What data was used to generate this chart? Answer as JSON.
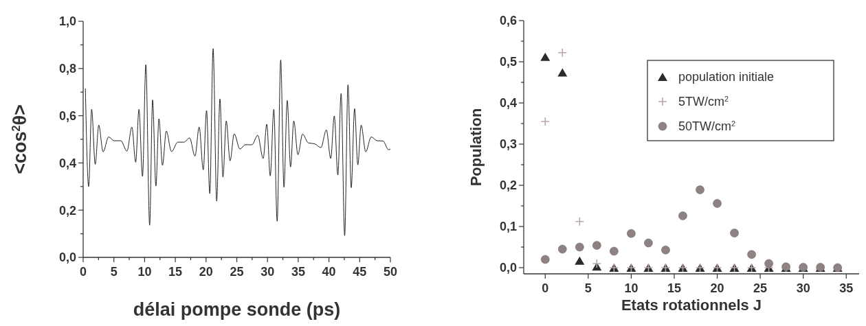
{
  "chart_data": [
    {
      "type": "line",
      "xlabel": "délai pompe sonde (ps)",
      "ylabel": "<cos$^{2}$θ>",
      "xlim": [
        0,
        50
      ],
      "ylim": [
        0,
        1
      ],
      "xticks": [
        0,
        {
          "value": 2.5,
          "label": null
        },
        5,
        {
          "value": 7.5,
          "label": null
        },
        10,
        {
          "value": 12.5,
          "label": null
        },
        15,
        {
          "value": 17.5,
          "label": null
        },
        20,
        {
          "value": 22.5,
          "label": null
        },
        25,
        {
          "value": 27.5,
          "label": null
        },
        30,
        {
          "value": 32.5,
          "label": null
        },
        35,
        {
          "value": 37.5,
          "label": null
        },
        40,
        {
          "value": 42.5,
          "label": null
        },
        45,
        {
          "value": 47.5,
          "label": null
        },
        50
      ],
      "yticks": [
        {
          "value": 0,
          "label": "0,0"
        },
        {
          "value": 0.1,
          "label": null
        },
        {
          "value": 0.2,
          "label": "0,2"
        },
        {
          "value": 0.3,
          "label": null
        },
        {
          "value": 0.4,
          "label": "0,4"
        },
        {
          "value": 0.5,
          "label": null
        },
        {
          "value": 0.6,
          "label": "0,6"
        },
        {
          "value": 0.7,
          "label": null
        },
        {
          "value": 0.8,
          "label": "0,8"
        },
        {
          "value": 0.9,
          "label": null
        },
        {
          "value": 1,
          "label": "1,0"
        }
      ],
      "legend": false,
      "grid": false,
      "marker": "none",
      "line_style": "solid",
      "series": [
        {
          "color": "#222222",
          "x": [
            0.36,
            0.89,
            1.38,
            1.96,
            2.54,
            3.25,
            4.14,
            5.03,
            6.14,
            7.12,
            7.93,
            8.55,
            9.08,
            9.66,
            10.2,
            10.82,
            11.3,
            11.84,
            12.33,
            12.91,
            13.53,
            14.38,
            15.4,
            16.4,
            17.32,
            18.2,
            18.88,
            19.55,
            20.08,
            20.61,
            21.15,
            21.73,
            22.26,
            22.75,
            23.29,
            23.91,
            24.58,
            25.51,
            26.4,
            27.47,
            28.4,
            29.3,
            29.88,
            30.45,
            31.03,
            31.57,
            32.15,
            32.68,
            33.21,
            33.75,
            34.28,
            34.95,
            35.71,
            36.64,
            37.67,
            38.69,
            39.58,
            40.29,
            40.87,
            41.45,
            41.98,
            42.56,
            43.1,
            43.63,
            44.17,
            44.7,
            45.24,
            45.99,
            46.88,
            47.86,
            48.8,
            49.69,
            50
          ],
          "values": [
            0.715,
            0.3,
            0.627,
            0.394,
            0.56,
            0.447,
            0.51,
            0.494,
            0.494,
            0.45,
            0.552,
            0.403,
            0.627,
            0.343,
            0.816,
            0.136,
            0.667,
            0.302,
            0.587,
            0.39,
            0.535,
            0.448,
            0.488,
            0.488,
            0.506,
            0.429,
            0.552,
            0.371,
            0.622,
            0.27,
            0.884,
            0.238,
            0.671,
            0.34,
            0.578,
            0.409,
            0.523,
            0.459,
            0.477,
            0.477,
            0.517,
            0.419,
            0.564,
            0.345,
            0.627,
            0.153,
            0.836,
            0.297,
            0.665,
            0.383,
            0.578,
            0.435,
            0.522,
            0.485,
            0.481,
            0.465,
            0.54,
            0.419,
            0.599,
            0.349,
            0.694,
            0.092,
            0.731,
            0.295,
            0.63,
            0.392,
            0.56,
            0.447,
            0.51,
            0.494,
            0.493,
            0.456,
            0.458
          ]
        }
      ]
    },
    {
      "type": "scatter",
      "xlabel": "Etats rotationnels J",
      "ylabel": "Population",
      "xlim": [
        -2.5,
        36.5
      ],
      "ylim": [
        -0.015,
        0.6
      ],
      "xticks": [
        0,
        5,
        10,
        15,
        20,
        25,
        30,
        35
      ],
      "yticks": [
        {
          "value": 0,
          "label": "0,0"
        },
        {
          "value": 0.05,
          "label": null
        },
        {
          "value": 0.1,
          "label": "0,1"
        },
        {
          "value": 0.15,
          "label": null
        },
        {
          "value": 0.2,
          "label": "0,2"
        },
        {
          "value": 0.25,
          "label": null
        },
        {
          "value": 0.3,
          "label": "0,3"
        },
        {
          "value": 0.35,
          "label": null
        },
        {
          "value": 0.4,
          "label": "0,4"
        },
        {
          "value": 0.45,
          "label": null
        },
        {
          "value": 0.5,
          "label": "0,5"
        },
        {
          "value": 0.55,
          "label": null
        },
        {
          "value": 0.6,
          "label": "0,6"
        }
      ],
      "legend": "top right",
      "grid": false,
      "x": [
        0,
        2,
        4,
        6,
        8,
        10,
        12,
        14,
        16,
        18,
        20,
        22,
        24,
        26,
        28,
        30,
        32,
        34
      ],
      "series": [
        {
          "name": "population initiale",
          "color": "#2b2b2b",
          "marker": "triangle",
          "values": [
            0.512,
            0.474,
            0.017,
            0.003,
            0,
            0,
            0,
            0,
            0,
            0,
            0,
            0,
            0,
            0,
            0,
            0,
            0,
            0
          ]
        },
        {
          "name": "5TW/cm$^{2}$",
          "color": "#b8a8a8",
          "marker": "cross",
          "values": [
            0.355,
            0.522,
            0.112,
            0.01,
            0,
            0,
            0,
            0,
            0,
            0,
            0,
            0,
            0,
            0,
            0,
            0,
            0,
            0
          ]
        },
        {
          "name": "50TW/cm$^{2}$",
          "color": "#8e8282",
          "marker": "circle",
          "values": [
            0.02,
            0.045,
            0.05,
            0.054,
            0.04,
            0.083,
            0.06,
            0.043,
            0.126,
            0.189,
            0.156,
            0.084,
            0.032,
            0.01,
            0.002,
            0.001,
            0.001,
            0
          ]
        }
      ]
    }
  ]
}
